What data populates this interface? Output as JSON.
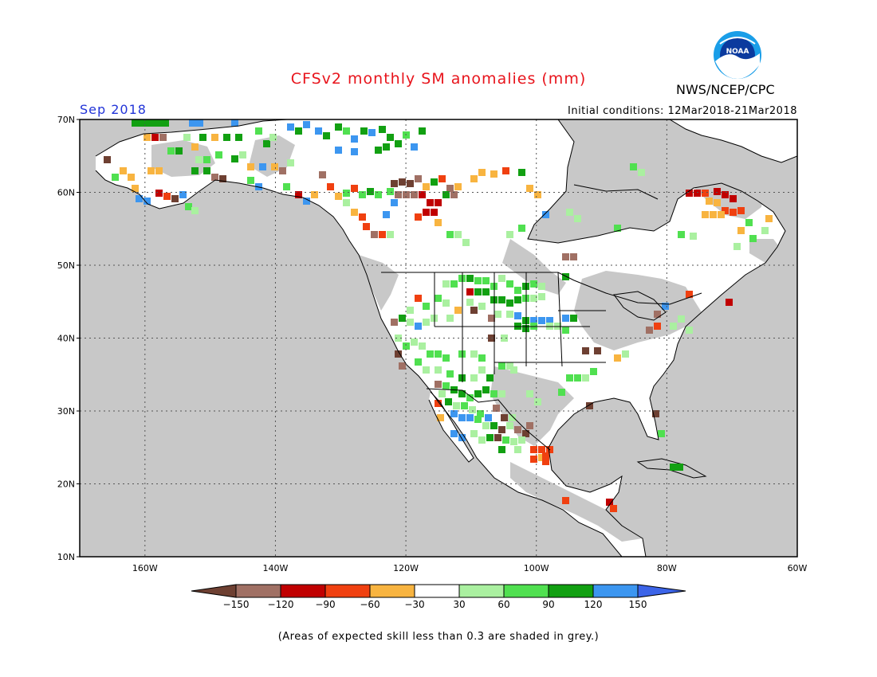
{
  "title": "CFSv2 monthly SM anomalies (mm)",
  "organization": "NWS/NCEP/CPC",
  "logo_text": "NOAA",
  "target_month": "Sep 2018",
  "initial_conditions": "Initial conditions: 12Mar2018-21Mar2018",
  "footnote": "(Areas of expected skill less than 0.3 are shaded in grey.)",
  "map": {
    "lon_range": [
      -170,
      -60
    ],
    "lat_range": [
      10,
      70
    ],
    "lat_labels": [
      "70N",
      "60N",
      "50N",
      "40N",
      "30N",
      "20N",
      "10N"
    ],
    "lon_labels": [
      "160W",
      "140W",
      "120W",
      "100W",
      "80W",
      "60W"
    ],
    "grid_lines": "dotted",
    "colors": {
      "ocean_low_skill": "#c8c8c8",
      "land_no_anomaly": "#ffffff",
      "coastline": "#000000"
    }
  },
  "legend": {
    "labels": [
      "-150",
      "-120",
      "-90",
      "-60",
      "-30",
      "30",
      "60",
      "90",
      "120",
      "150"
    ],
    "colors": [
      "#6e4032",
      "#a07064",
      "#c00000",
      "#f04010",
      "#f8b440",
      "#ffffff",
      "#aaf0a0",
      "#50e050",
      "#12a012",
      "#3c96f0",
      "#3c64e8"
    ]
  }
}
